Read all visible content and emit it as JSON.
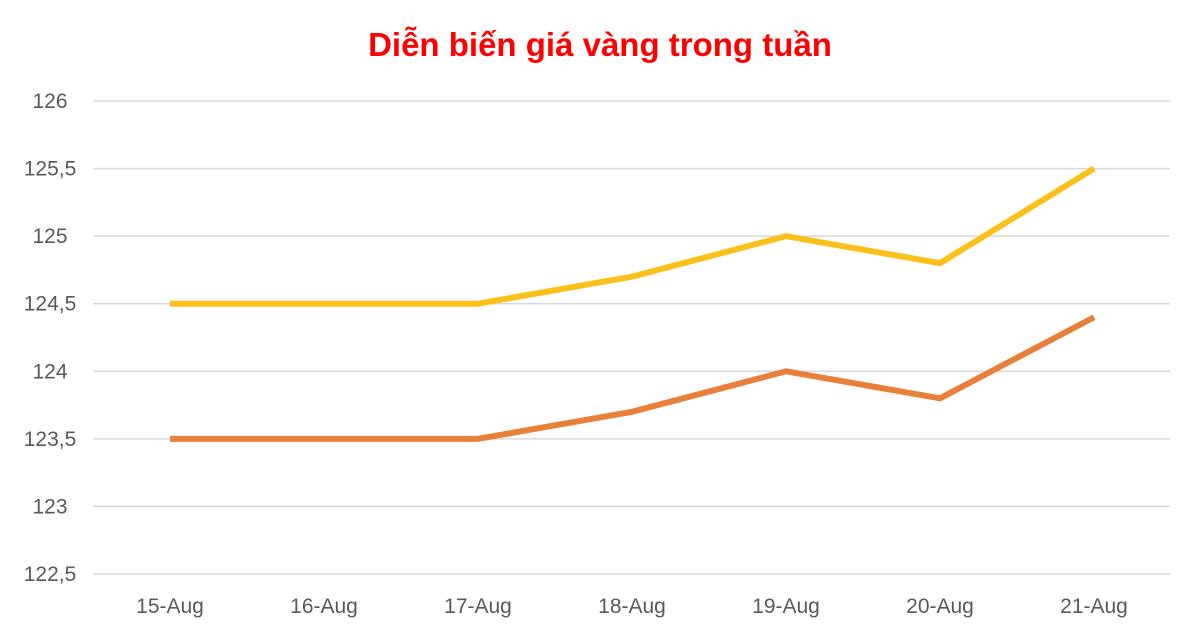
{
  "chart_data": {
    "type": "line",
    "title": "Diễn biến giá vàng trong tuần",
    "xlabel": "",
    "ylabel": "",
    "categories": [
      "15-Aug",
      "16-Aug",
      "17-Aug",
      "18-Aug",
      "19-Aug",
      "20-Aug",
      "21-Aug"
    ],
    "y_tick_labels": [
      "122,5",
      "123",
      "123,5",
      "124",
      "124,5",
      "125",
      "125,5",
      "126"
    ],
    "ylim": [
      122.5,
      126
    ],
    "grid": true,
    "legend": "none",
    "series": [
      {
        "color": "#FBC01A",
        "values": [
          124.5,
          124.5,
          124.5,
          124.7,
          125.0,
          124.8,
          125.5
        ]
      },
      {
        "color": "#E8803A",
        "values": [
          123.5,
          123.5,
          123.5,
          123.7,
          124.0,
          123.8,
          124.4
        ]
      }
    ]
  },
  "colors": {
    "title": "#FF0000",
    "gridline": "#D9D9D9",
    "tick_text": "#595959"
  }
}
